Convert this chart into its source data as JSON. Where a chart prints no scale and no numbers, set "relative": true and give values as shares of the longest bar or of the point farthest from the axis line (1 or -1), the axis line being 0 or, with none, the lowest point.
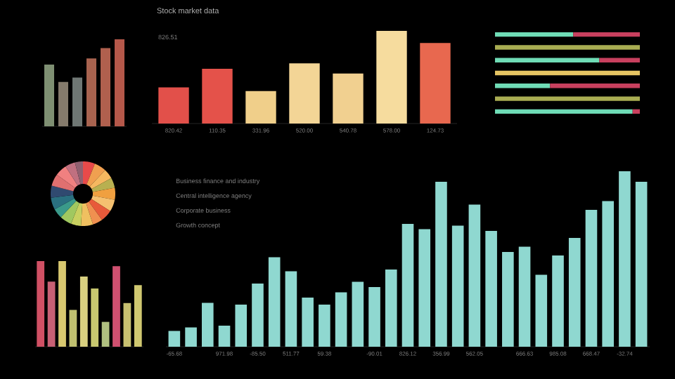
{
  "chart_data": [
    {
      "type": "bar",
      "relative": true,
      "categories": [
        null,
        null,
        null,
        null,
        null,
        null
      ],
      "values": [
        0.71,
        0.51,
        0.56,
        0.78,
        0.9,
        1
      ],
      "colors": [
        "#7e8f72",
        "#857b6c",
        "#6f7774",
        "#a8634f",
        "#b0604e",
        "#b5584a"
      ]
    },
    {
      "type": "bar",
      "relative": true,
      "title": "Stock market data",
      "annotations": [
        "826.51"
      ],
      "categories": [
        "820.42",
        "110.35",
        "331.96",
        "520.00",
        "540.78",
        "578.00",
        "124.73"
      ],
      "values": [
        0.39,
        0.59,
        0.35,
        0.65,
        0.54,
        1,
        0.87
      ],
      "colors": [
        "#e2504a",
        "#e4524a",
        "#f0cf8a",
        "#f3d596",
        "#f1d090",
        "#f6dc9e",
        "#e8684f"
      ]
    },
    {
      "type": "bar",
      "relative": true,
      "orientation": "horizontal",
      "stacked": true,
      "categories": [
        null,
        null,
        null,
        null,
        null,
        null,
        null
      ],
      "series": [
        {
          "colors": [
            "#6fdcb6",
            "#a9ad52",
            "#6fdcb6",
            "#e6c563",
            "#6fdcb6",
            "#a9ad52",
            "#6fdcb6"
          ],
          "values": [
            0.54,
            1,
            0.72,
            1,
            0.38,
            1,
            0.95
          ]
        },
        {
          "color": "#c8405e",
          "values": [
            0.46,
            null,
            0.28,
            null,
            0.62,
            null,
            0.05
          ]
        }
      ]
    },
    {
      "type": "donut",
      "categories": [
        null,
        null,
        null,
        null,
        null,
        null,
        null,
        null,
        null,
        null,
        null,
        null,
        null,
        null,
        null,
        null,
        null,
        null
      ],
      "values": [
        6,
        6,
        5,
        5,
        6,
        6,
        6,
        5,
        6,
        5,
        6,
        5,
        6,
        6,
        6,
        6,
        5,
        4
      ],
      "colors": [
        "#e84a4a",
        "#f0a050",
        "#f5b860",
        "#b8b050",
        "#f0a040",
        "#f5c070",
        "#e85a3a",
        "#f09050",
        "#f0c060",
        "#c8d060",
        "#a0c860",
        "#3a9a8a",
        "#2a7080",
        "#304a70",
        "#e07070",
        "#f08080",
        "#c07080",
        "#906070"
      ]
    },
    {
      "type": "bar",
      "relative": true,
      "categories": [
        null,
        null,
        null,
        null,
        null,
        null,
        null,
        null,
        null,
        null
      ],
      "values": [
        1,
        0.76,
        1,
        0.43,
        0.82,
        0.68,
        0.29,
        0.94,
        0.51,
        0.72
      ],
      "colors": [
        "#d05064",
        "#c86074",
        "#d8c870",
        "#c0c070",
        "#d8d080",
        "#c8c870",
        "#b0c080",
        "#d05070",
        "#c8c070",
        "#d0c870"
      ]
    },
    {
      "type": "bar",
      "relative": true,
      "annotations": [
        "Business finance and industry",
        "Central intelligence agency",
        "Corporate business",
        "Growth concept"
      ],
      "categories": [
        "-65.68",
        null,
        null,
        "971.98",
        null,
        "-85.50",
        null,
        "511.77",
        null,
        "59.38",
        null,
        null,
        "-90.01",
        null,
        "826.12",
        null,
        "356.99",
        null,
        "562.05",
        null,
        null,
        "666.63",
        null,
        "985.08",
        null,
        "668.47",
        null,
        "-32.74",
        null
      ],
      "values": [
        0.09,
        0.11,
        0.25,
        0.12,
        0.24,
        0.36,
        0.51,
        0.43,
        0.28,
        0.24,
        0.31,
        0.37,
        0.34,
        0.44,
        0.7,
        0.67,
        0.94,
        0.69,
        0.81,
        0.66,
        0.54,
        0.57,
        0.41,
        0.52,
        0.62,
        0.78,
        0.83,
        1,
        0.94
      ],
      "color": "#8fd8d0"
    }
  ]
}
